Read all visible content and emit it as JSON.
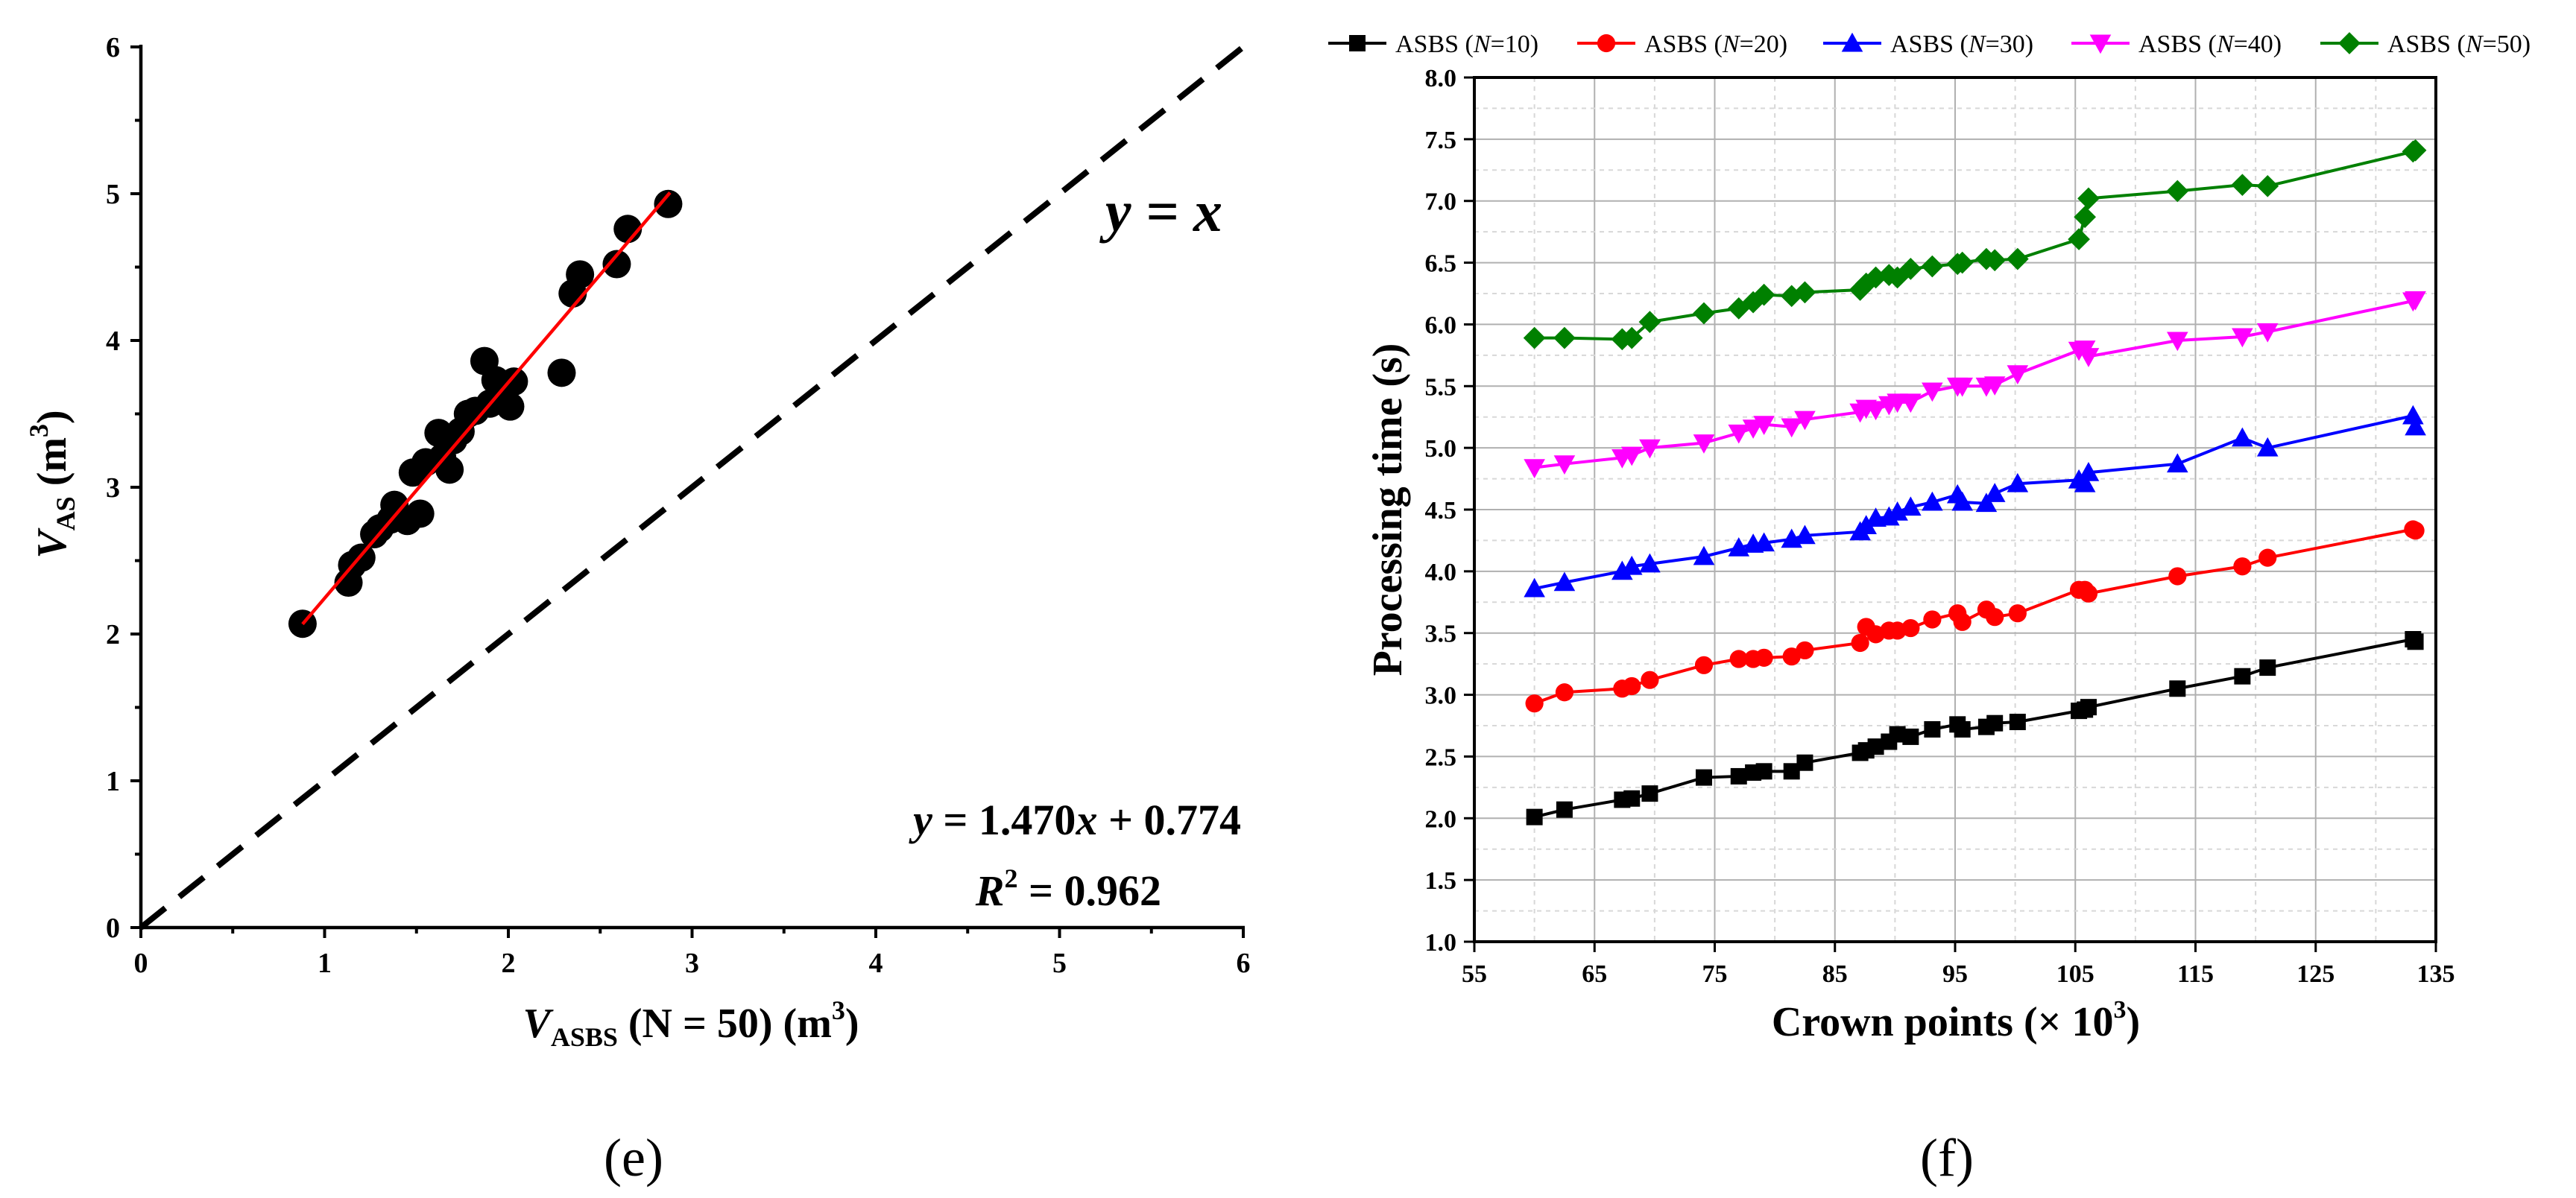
{
  "chart_data": [
    {
      "type": "scatter",
      "panel_label": "(e)",
      "xlabel": {
        "main": "V",
        "sub": "ASBS",
        "rest": " (N = 50) (m",
        "sup": "3",
        "end": ")"
      },
      "ylabel": {
        "main": "V",
        "sub": "AS",
        "rest": " (m",
        "sup": "3",
        "end": ")"
      },
      "xlim": [
        0,
        6
      ],
      "ylim": [
        0,
        6
      ],
      "xticks": [
        0,
        1,
        2,
        3,
        4,
        5,
        6
      ],
      "yticks": [
        0,
        1,
        2,
        3,
        4,
        5,
        6
      ],
      "reference_line_label": "y = x",
      "fit": {
        "slope": 1.47,
        "intercept": 0.774,
        "x_range": [
          0.88,
          2.88
        ],
        "color": "#ff0000"
      },
      "equation_text": {
        "y": "y",
        "rest": " = 1.470",
        "x": "x",
        "tail": " + 0.774"
      },
      "r2_text": {
        "R": "R",
        "sup": "2",
        "tail": " = 0.962"
      },
      "points": [
        [
          0.88,
          2.07
        ],
        [
          1.13,
          2.35
        ],
        [
          1.15,
          2.47
        ],
        [
          1.2,
          2.52
        ],
        [
          1.27,
          2.68
        ],
        [
          1.3,
          2.72
        ],
        [
          1.36,
          2.78
        ],
        [
          1.38,
          2.88
        ],
        [
          1.45,
          2.77
        ],
        [
          1.48,
          3.1
        ],
        [
          1.52,
          2.82
        ],
        [
          1.55,
          3.17
        ],
        [
          1.62,
          3.37
        ],
        [
          1.64,
          3.2
        ],
        [
          1.68,
          3.12
        ],
        [
          1.7,
          3.32
        ],
        [
          1.74,
          3.38
        ],
        [
          1.78,
          3.5
        ],
        [
          1.82,
          3.52
        ],
        [
          1.87,
          3.86
        ],
        [
          1.9,
          3.57
        ],
        [
          1.93,
          3.73
        ],
        [
          1.97,
          3.65
        ],
        [
          2.01,
          3.55
        ],
        [
          2.03,
          3.72
        ],
        [
          2.29,
          3.78
        ],
        [
          2.35,
          4.32
        ],
        [
          2.39,
          4.45
        ],
        [
          2.59,
          4.52
        ],
        [
          2.65,
          4.76
        ],
        [
          2.87,
          4.93
        ]
      ]
    },
    {
      "type": "line",
      "panel_label": "(f)",
      "xlabel": {
        "main": "Crown points (× 10",
        "sup": "3",
        "end": ")"
      },
      "ylabel": "Processing time (s)",
      "xlim": [
        55,
        135
      ],
      "ylim": [
        1.0,
        8.0
      ],
      "xticks": [
        55,
        65,
        75,
        85,
        95,
        105,
        115,
        125,
        135
      ],
      "yticks": [
        1.0,
        1.5,
        2.0,
        2.5,
        3.0,
        3.5,
        4.0,
        4.5,
        5.0,
        5.5,
        6.0,
        6.5,
        7.0,
        7.5,
        8.0
      ],
      "x": [
        60.0,
        62.5,
        67.3,
        68.1,
        69.6,
        74.1,
        77.0,
        78.2,
        79.1,
        81.4,
        82.5,
        87.1,
        87.6,
        88.4,
        89.5,
        90.2,
        91.3,
        93.1,
        95.2,
        95.6,
        97.6,
        98.3,
        100.2,
        105.3,
        105.8,
        106.1,
        113.5,
        118.9,
        121.0,
        133.1,
        133.3
      ],
      "series": [
        {
          "name": "ASBS (N=10)",
          "label": {
            "pre": "ASBS (",
            "n": "N",
            "post": "=10)"
          },
          "color": "#000000",
          "marker": "square",
          "values": [
            2.01,
            2.07,
            2.15,
            2.16,
            2.2,
            2.33,
            2.34,
            2.37,
            2.38,
            2.38,
            2.45,
            2.53,
            2.55,
            2.58,
            2.62,
            2.68,
            2.66,
            2.72,
            2.76,
            2.72,
            2.74,
            2.77,
            2.78,
            2.87,
            2.88,
            2.9,
            3.05,
            3.15,
            3.22,
            3.45,
            3.43
          ]
        },
        {
          "name": "ASBS (N=20)",
          "label": {
            "pre": "ASBS (",
            "n": "N",
            "post": "=20)"
          },
          "color": "#ff0000",
          "marker": "circle",
          "values": [
            2.93,
            3.02,
            3.05,
            3.07,
            3.12,
            3.24,
            3.29,
            3.29,
            3.3,
            3.31,
            3.36,
            3.42,
            3.55,
            3.49,
            3.52,
            3.52,
            3.54,
            3.61,
            3.66,
            3.59,
            3.69,
            3.63,
            3.66,
            3.85,
            3.85,
            3.82,
            3.96,
            4.04,
            4.11,
            4.34,
            4.33
          ]
        },
        {
          "name": "ASBS (N=30)",
          "label": {
            "pre": "ASBS (",
            "n": "N",
            "post": "=30)"
          },
          "color": "#0000ff",
          "marker": "triangle-up",
          "values": [
            3.86,
            3.91,
            4.0,
            4.04,
            4.06,
            4.12,
            4.19,
            4.22,
            4.23,
            4.26,
            4.29,
            4.32,
            4.37,
            4.43,
            4.44,
            4.48,
            4.52,
            4.56,
            4.62,
            4.56,
            4.55,
            4.63,
            4.71,
            4.74,
            4.71,
            4.8,
            4.87,
            5.08,
            5.0,
            5.26,
            5.17
          ]
        },
        {
          "name": "ASBS (N=40)",
          "label": {
            "pre": "ASBS (",
            "n": "N",
            "post": "=40)"
          },
          "color": "#ff00ff",
          "marker": "triangle-down",
          "values": [
            4.84,
            4.87,
            4.92,
            4.94,
            5.0,
            5.04,
            5.12,
            5.16,
            5.19,
            5.17,
            5.23,
            5.29,
            5.32,
            5.31,
            5.35,
            5.37,
            5.37,
            5.46,
            5.5,
            5.5,
            5.5,
            5.51,
            5.6,
            5.79,
            5.8,
            5.74,
            5.87,
            5.9,
            5.94,
            6.19,
            6.2
          ]
        },
        {
          "name": "ASBS (N=50)",
          "label": {
            "pre": "ASBS (",
            "n": "N",
            "post": "=50)"
          },
          "color": "#008000",
          "marker": "diamond",
          "values": [
            5.89,
            5.89,
            5.88,
            5.89,
            6.02,
            6.09,
            6.13,
            6.18,
            6.24,
            6.23,
            6.26,
            6.28,
            6.33,
            6.38,
            6.4,
            6.38,
            6.45,
            6.47,
            6.49,
            6.5,
            6.53,
            6.52,
            6.53,
            6.69,
            6.87,
            7.02,
            7.08,
            7.13,
            7.12,
            7.4,
            7.41
          ]
        }
      ]
    }
  ]
}
